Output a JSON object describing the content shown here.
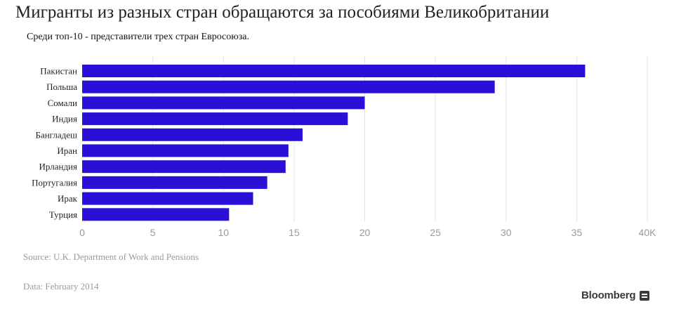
{
  "title": "Мигранты из разных стран обращаются за пособиями Великобритании",
  "subtitle": "Среди топ-10 - представители трех стран Евросоюза.",
  "source": "Source: U.K. Department of Work and Pensions",
  "date": "Data: February 2014",
  "brand": "Bloomberg",
  "colors": {
    "bar": "#2a10d6",
    "grid": "#e6e6e6",
    "tick": "#9a9a9a"
  },
  "chart_data": {
    "type": "bar",
    "orientation": "horizontal",
    "categories": [
      "Пакистан",
      "Польша",
      "Сомали",
      "Индия",
      "Бангладеш",
      "Иран",
      "Ирландия",
      "Португалия",
      "Ирак",
      "Турция"
    ],
    "values": [
      35.6,
      29.2,
      20.0,
      18.8,
      15.6,
      14.6,
      14.4,
      13.1,
      12.1,
      10.4
    ],
    "xlim": [
      0,
      40
    ],
    "xticks": [
      0,
      5,
      10,
      15,
      20,
      25,
      30,
      35,
      40
    ],
    "xtick_labels": [
      "0",
      "5",
      "10",
      "15",
      "20",
      "25",
      "30",
      "35",
      "40K"
    ],
    "grid": true
  }
}
